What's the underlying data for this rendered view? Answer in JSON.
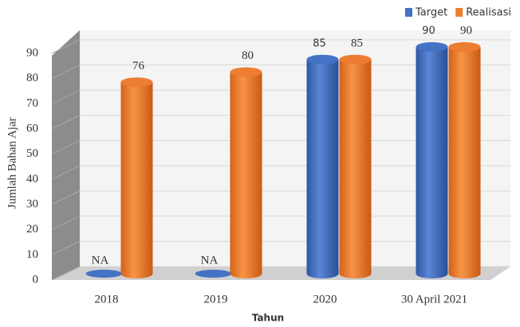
{
  "chart_data": {
    "type": "bar3d",
    "categories": [
      "2018",
      "2019",
      "2020",
      "30 April 2021"
    ],
    "series": [
      {
        "name": "Target",
        "color": "#4472c4",
        "values": [
          null,
          null,
          85,
          90
        ],
        "value_labels": [
          "NA",
          "NA",
          "85",
          "90"
        ]
      },
      {
        "name": "Realisasi",
        "color": "#ed7d31",
        "values": [
          76,
          80,
          85,
          90
        ]
      }
    ],
    "ylim": [
      0,
      90
    ],
    "yticks": [
      0,
      10,
      20,
      30,
      40,
      50,
      60,
      70,
      80,
      90
    ],
    "ylabel": "Jumlah Bahan Ajar",
    "xlabel": "Tahun",
    "grid": true,
    "legend": "top-right"
  }
}
